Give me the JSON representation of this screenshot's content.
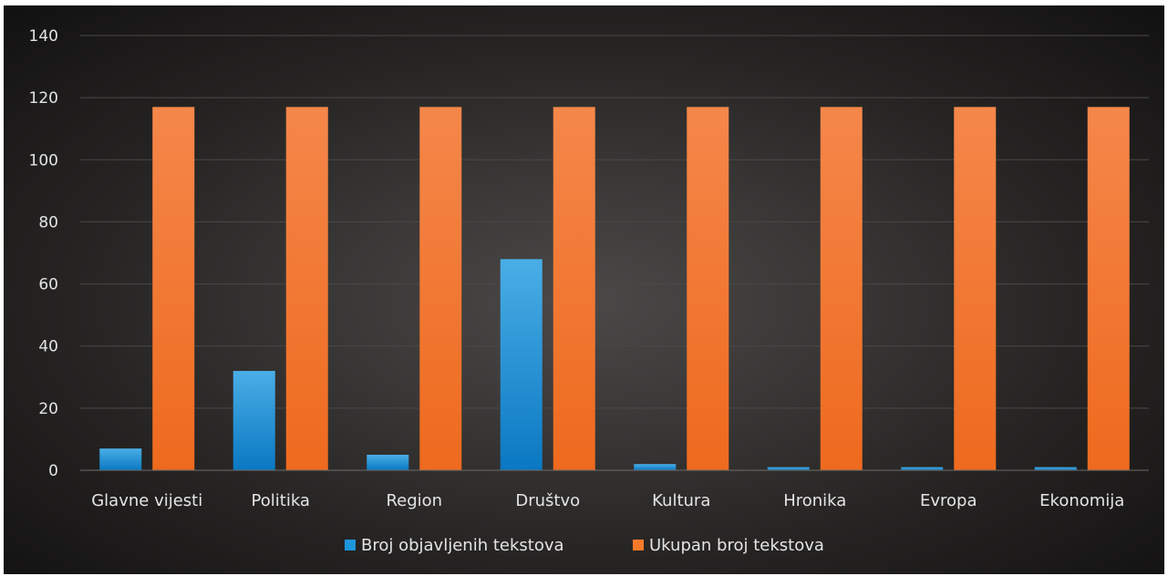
{
  "chart_data": {
    "type": "bar",
    "title": "",
    "xlabel": "",
    "ylabel": "",
    "categories": [
      "Glavne vijesti",
      "Politika",
      "Region",
      "Društvo",
      "Kultura",
      "Hronika",
      "Evropa",
      "Ekonomija"
    ],
    "series": [
      {
        "name": "Broj objavljenih tekstova",
        "values": [
          7,
          32,
          5,
          68,
          2,
          1,
          1,
          1
        ]
      },
      {
        "name": "Ukupan broj tekstova",
        "values": [
          117,
          117,
          117,
          117,
          117,
          117,
          117,
          117
        ]
      }
    ],
    "ylim": [
      0,
      140
    ],
    "yticks": [
      0,
      20,
      40,
      60,
      80,
      100,
      120,
      140
    ],
    "grid": true,
    "legend_position": "bottom",
    "colors": {
      "series": [
        "#1e96dc",
        "#f47a2a"
      ],
      "gridline": "#4a4847",
      "text": "#e4e4e4"
    }
  }
}
